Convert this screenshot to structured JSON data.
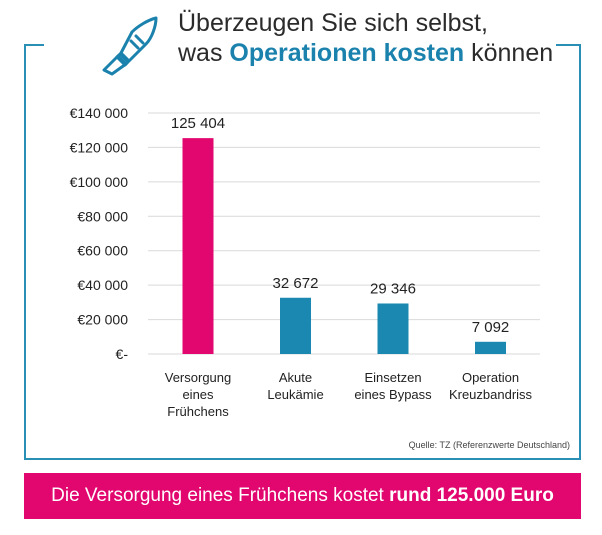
{
  "header": {
    "line1": "Überzeugen Sie sich selbst,",
    "line2_prefix": "was ",
    "line2_highlight": "Operationen kosten",
    "line2_suffix": " können",
    "icon": "scalpel-icon"
  },
  "chart_data": {
    "type": "bar",
    "categories": [
      [
        "Versorgung",
        "eines",
        "Frühchens"
      ],
      [
        "Akute",
        "Leukämie"
      ],
      [
        "Einsetzen",
        "eines Bypass"
      ],
      [
        "Operation",
        "Kreuzbandriss"
      ]
    ],
    "values": [
      125404,
      32672,
      29346,
      7092
    ],
    "value_labels": [
      "125 404",
      "32 672",
      "29 346",
      "7 092"
    ],
    "bar_colors": [
      "#e2066f",
      "#1a88b0",
      "#1a88b0",
      "#1a88b0"
    ],
    "y_ticks": [
      0,
      20000,
      40000,
      60000,
      80000,
      100000,
      120000,
      140000
    ],
    "y_tick_labels": [
      "€-",
      "€20 000",
      "€40 000",
      "€60 000",
      "€80 000",
      "€100 000",
      "€120 000",
      "€140 000"
    ],
    "ylim": [
      0,
      140000
    ],
    "grid": true,
    "legend": false
  },
  "source": "Quelle: TZ (Referenzwerte Deutschland)",
  "banner": {
    "prefix": "Die Versorgung eines Frühchens kostet ",
    "bold": "rund 125.000 Euro"
  },
  "colors": {
    "accent_pink": "#e2066f",
    "accent_blue": "#1a88b0",
    "frame": "#2a8fb5"
  }
}
